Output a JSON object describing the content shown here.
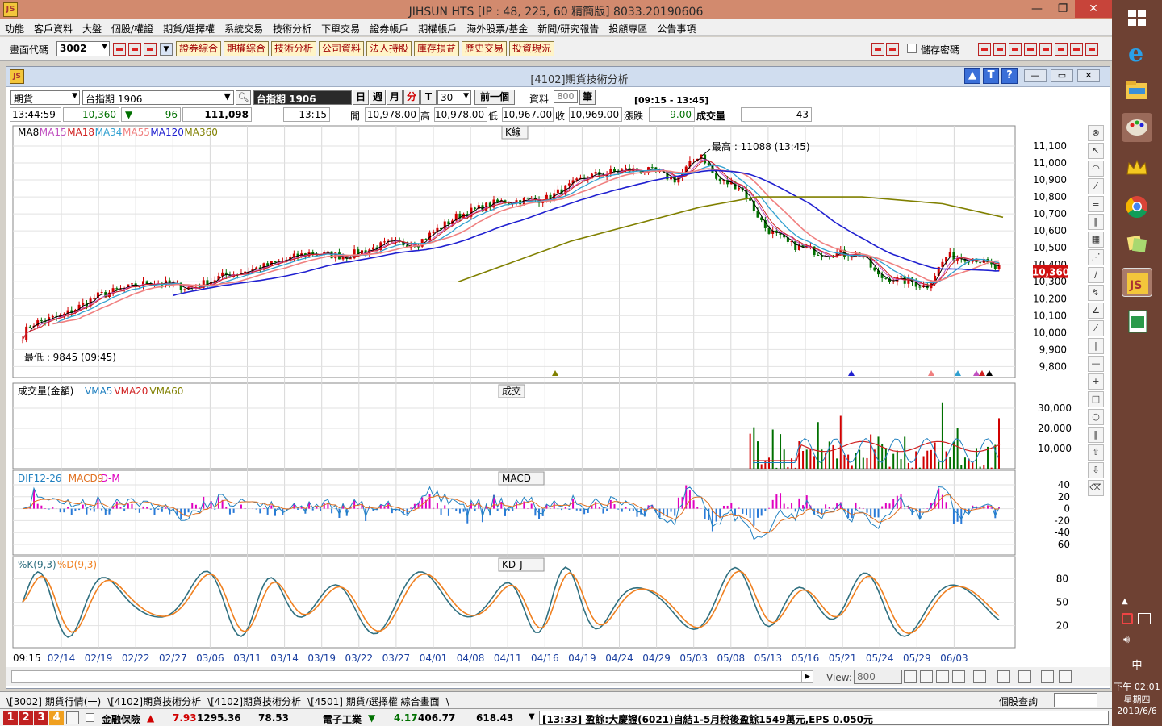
{
  "app": {
    "title": "JIHSUN HTS",
    "title_full": "JIHSUN HTS      [IP : 48, 225, 60 精簡版] 8033.20190606",
    "win_min": "—",
    "win_max": "❐",
    "win_close": "✕"
  },
  "menu": [
    "功能",
    "客戶資料",
    "大盤",
    "個股/權證",
    "期貨/選擇權",
    "系統交易",
    "技術分析",
    "下單交易",
    "證券帳戶",
    "期權帳戶",
    "海外股票/基金",
    "新聞/研究報告",
    "投顧專區",
    "公告事項"
  ],
  "toolbar": {
    "code_label": "畫面代碼",
    "code_value": "3002",
    "buttons": [
      "證券綜合",
      "期權綜合",
      "技術分析",
      "公司資料",
      "法人持股",
      "庫存損益",
      "歷史交易",
      "投資現況"
    ],
    "save_password": "儲存密碼"
  },
  "child": {
    "title": "[4102]期貨技術分析",
    "btn_up": "▲",
    "btn_t": "T",
    "btn_q": "?",
    "win_min": "—",
    "win_max": "▭",
    "win_close": "✕"
  },
  "controls": {
    "type": "期貨",
    "symbol": "台指期 1906",
    "symbol_display": "台指期 1906",
    "day": "日",
    "week": "週",
    "month": "月",
    "minute": "分",
    "t": "T",
    "interval": "30",
    "prev": "前一個",
    "data_label": "資料",
    "data_count": "800",
    "data_unit": "筆",
    "time_range": "[09:15 - 13:45]"
  },
  "quote": {
    "time": "13:44:59",
    "price": "10,360",
    "change_arrow": "▼",
    "change": "96",
    "volume": "111,098",
    "bar_time": "13:15",
    "open_label": "開",
    "open": "10,978.00",
    "high_label": "高",
    "high": "10,978.00",
    "low_label": "低",
    "low": "10,967.00",
    "close_label": "收",
    "close": "10,969.00",
    "chg_label": "漲跌",
    "chg": "-9.00",
    "vol_label": "成交量",
    "vol": "43"
  },
  "colors": {
    "ma8": "#000000",
    "ma15": "#c050c0",
    "ma18": "#d02020",
    "ma34": "#30a0d0",
    "ma55": "#f08080",
    "ma120": "#2020d0",
    "ma360": "#808000",
    "up": "#d00000",
    "down": "#007000",
    "dif": "#2080c0",
    "macd9": "#e07020",
    "dm": "#e000c0",
    "k": "#307080",
    "d": "#f08020"
  },
  "panels": {
    "kline": {
      "title": "K線",
      "legend": [
        "MA8",
        "MA15",
        "MA18",
        "MA34",
        "MA55",
        "MA120",
        "MA360"
      ],
      "high_note": "最高 : 11088 (13:45)",
      "low_note": "最低 : 9845 (09:45)",
      "yticks": [
        "11,100",
        "11,000",
        "10,900",
        "10,800",
        "10,700",
        "10,600",
        "10,500",
        "10,400",
        "10,300",
        "10,200",
        "10,100",
        "10,000",
        "9,900",
        "9,800"
      ],
      "last_price": "10,360"
    },
    "volume": {
      "title": "成交",
      "legend": [
        "成交量(金額)",
        "VMA5",
        "VMA20",
        "VMA60"
      ],
      "yticks": [
        "30,000",
        "20,000",
        "10,000"
      ]
    },
    "macd": {
      "title": "MACD",
      "legend": [
        "DIF12-26",
        "MACD9",
        "D-M"
      ],
      "yticks": [
        "40",
        "20",
        "0",
        "-20",
        "-40",
        "-60"
      ]
    },
    "kd": {
      "title": "KD-J",
      "legend": [
        "%K(9,3)",
        "%D(9,3)"
      ],
      "yticks": [
        "80",
        "50",
        "20"
      ]
    }
  },
  "xaxis": [
    "09:15",
    "02/14",
    "02/19",
    "02/22",
    "02/27",
    "03/06",
    "03/11",
    "03/14",
    "03/19",
    "03/22",
    "03/27",
    "04/01",
    "04/08",
    "04/11",
    "04/16",
    "04/19",
    "04/24",
    "04/29",
    "05/03",
    "05/08",
    "05/13",
    "05/16",
    "05/21",
    "05/24",
    "05/29",
    "06/03"
  ],
  "view": {
    "label": "View:",
    "value": "800"
  },
  "tabs": [
    "\\[3002] 期貨行情(一)",
    "\\[4102]期貨技術分析",
    "\\[4102]期貨技術分析",
    "\\[4501] 期貨/選擇權 綜合畫面",
    "\\"
  ],
  "tabs_right": "個股查詢",
  "status": {
    "nums": [
      "1",
      "2",
      "3",
      "4"
    ],
    "idx1_name": "金融保險",
    "idx1_arrow": "▲",
    "idx1_chg": "7.93",
    "idx1_val": "1295.36",
    "idx1_vol": "78.53",
    "idx2_name": "電子工業",
    "idx2_arrow": "▼",
    "idx2_chg": "4.17",
    "idx2_val": "406.77",
    "idx2_vol": "618.43",
    "news": "[13:33] 盈餘:大慶證(6021)自結1-5月稅後盈餘1549萬元,EPS 0.050元"
  },
  "taskbar": {
    "time": "下午 02:01",
    "weekday": "星期四",
    "date": "2019/6/6",
    "ime": "中"
  }
}
